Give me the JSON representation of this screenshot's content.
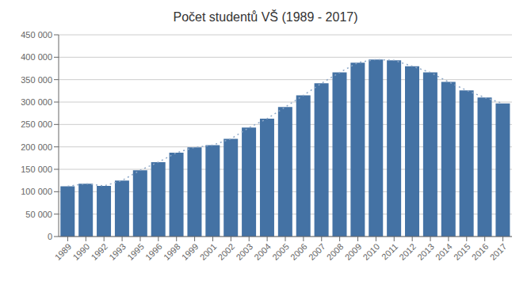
{
  "chart_data": {
    "type": "bar",
    "title": "Počet studentů VŠ (1989 - 2017)",
    "categories": [
      "1989",
      "1990",
      "1992",
      "1993",
      "1995",
      "1996",
      "1998",
      "1999",
      "2001",
      "2002",
      "2003",
      "2004",
      "2005",
      "2006",
      "2007",
      "2008",
      "2009",
      "2010",
      "2011",
      "2012",
      "2013",
      "2014",
      "2015",
      "2016",
      "2017"
    ],
    "series": [
      {
        "type": "bar",
        "color": "#4472a4",
        "values": [
          112000,
          118000,
          113000,
          125000,
          148000,
          166000,
          187000,
          199000,
          204000,
          218000,
          243000,
          263000,
          289000,
          315000,
          342000,
          366000,
          388000,
          395000,
          393000,
          380000,
          366000,
          345000,
          326000,
          310000,
          297000
        ]
      },
      {
        "type": "line",
        "color": "#8fa9c8",
        "line_style": "dotted",
        "values": [
          112000,
          118000,
          113000,
          125000,
          148000,
          166000,
          187000,
          199000,
          204000,
          218000,
          243000,
          263000,
          289000,
          315000,
          342000,
          366000,
          388000,
          395000,
          393000,
          380000,
          366000,
          345000,
          326000,
          310000,
          297000
        ]
      }
    ],
    "ylim": [
      0,
      450000
    ],
    "yticks": [
      0,
      {
        "value": 50000,
        "label": "50 000"
      },
      {
        "value": 100000,
        "label": "100 000"
      },
      {
        "value": 150000,
        "label": "150 000"
      },
      {
        "value": 200000,
        "label": "200 000"
      },
      {
        "value": 250000,
        "label": "250 000"
      },
      {
        "value": 300000,
        "label": "300 000"
      },
      {
        "value": 350000,
        "label": "350 000"
      },
      {
        "value": 400000,
        "label": "400 000"
      },
      {
        "value": 450000,
        "label": "450 000"
      }
    ],
    "grid": true
  }
}
